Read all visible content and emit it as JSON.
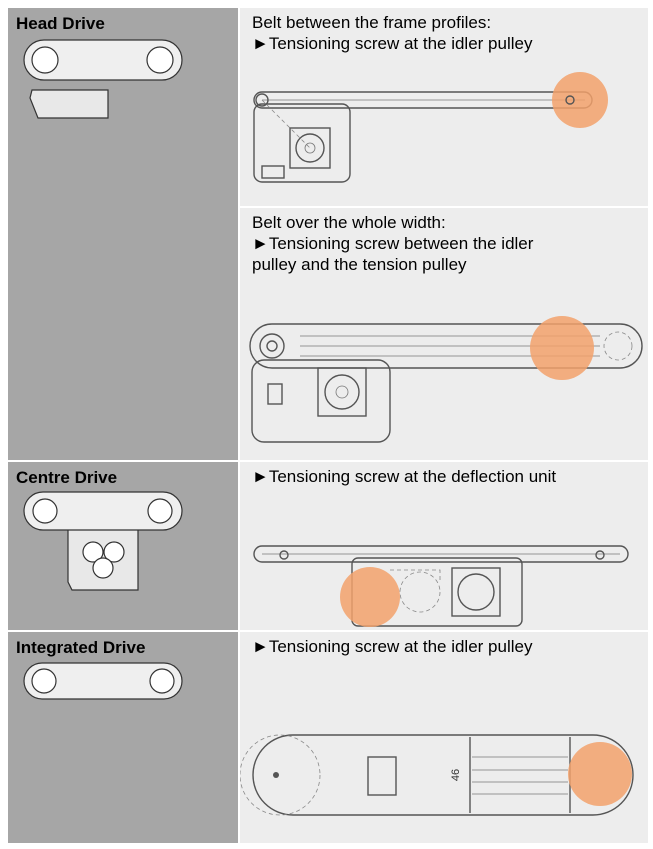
{
  "rows": [
    {
      "label": "Head Drive",
      "cells": [
        {
          "lines": [
            "Belt between the frame profiles:",
            "►Tensioning screw at the idler pulley"
          ]
        },
        {
          "lines": [
            "Belt over the whole width:",
            "►Tensioning screw between the idler pulley and the tension pulley"
          ]
        }
      ]
    },
    {
      "label": "Centre Drive",
      "cells": [
        {
          "lines": [
            "►Tensioning screw at the deflection unit"
          ]
        }
      ]
    },
    {
      "label": "Integrated Drive",
      "cells": [
        {
          "lines": [
            "►Tensioning screw at the idler pulley"
          ],
          "dimension": "46"
        }
      ]
    }
  ]
}
